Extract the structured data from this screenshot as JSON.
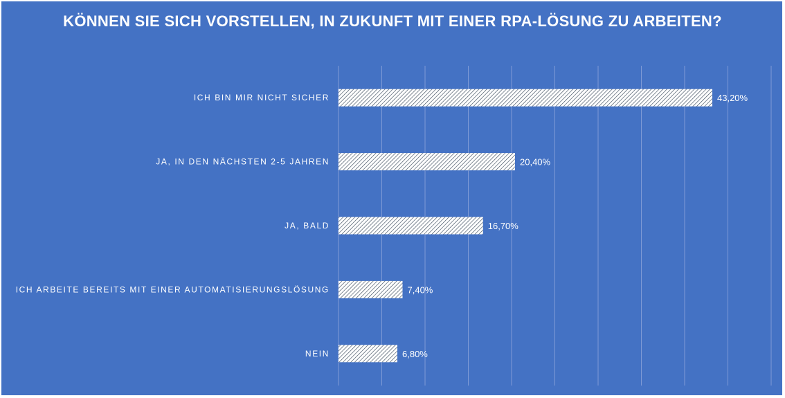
{
  "chart_data": {
    "type": "bar",
    "orientation": "horizontal",
    "title": "KÖNNEN SIE SICH VORSTELLEN, IN ZUKUNFT MIT EINER RPA-LÖSUNG ZU ARBEITEN?",
    "categories": [
      "ICH BIN MIR NICHT SICHER",
      "JA, IN DEN NÄCHSTEN 2-5 JAHREN",
      "JA, BALD",
      "ICH ARBEITE BEREITS MIT EINER AUTOMATISIERUNGSLÖSUNG",
      "NEIN"
    ],
    "values": [
      43.2,
      20.4,
      16.7,
      7.4,
      6.8
    ],
    "data_labels": [
      "43,20%",
      "20,40%",
      "16,70%",
      "7,40%",
      "6,80%"
    ],
    "xlim": [
      0,
      50
    ],
    "grid_step": 5,
    "grid": true,
    "x_tick_labels_visible": false,
    "colors": {
      "background": "#4472c4",
      "bar_fill": "#ffffff",
      "bar_hatch": "#3a4a5c",
      "grid": "#7f9bd6",
      "text": "#ffffff"
    }
  }
}
